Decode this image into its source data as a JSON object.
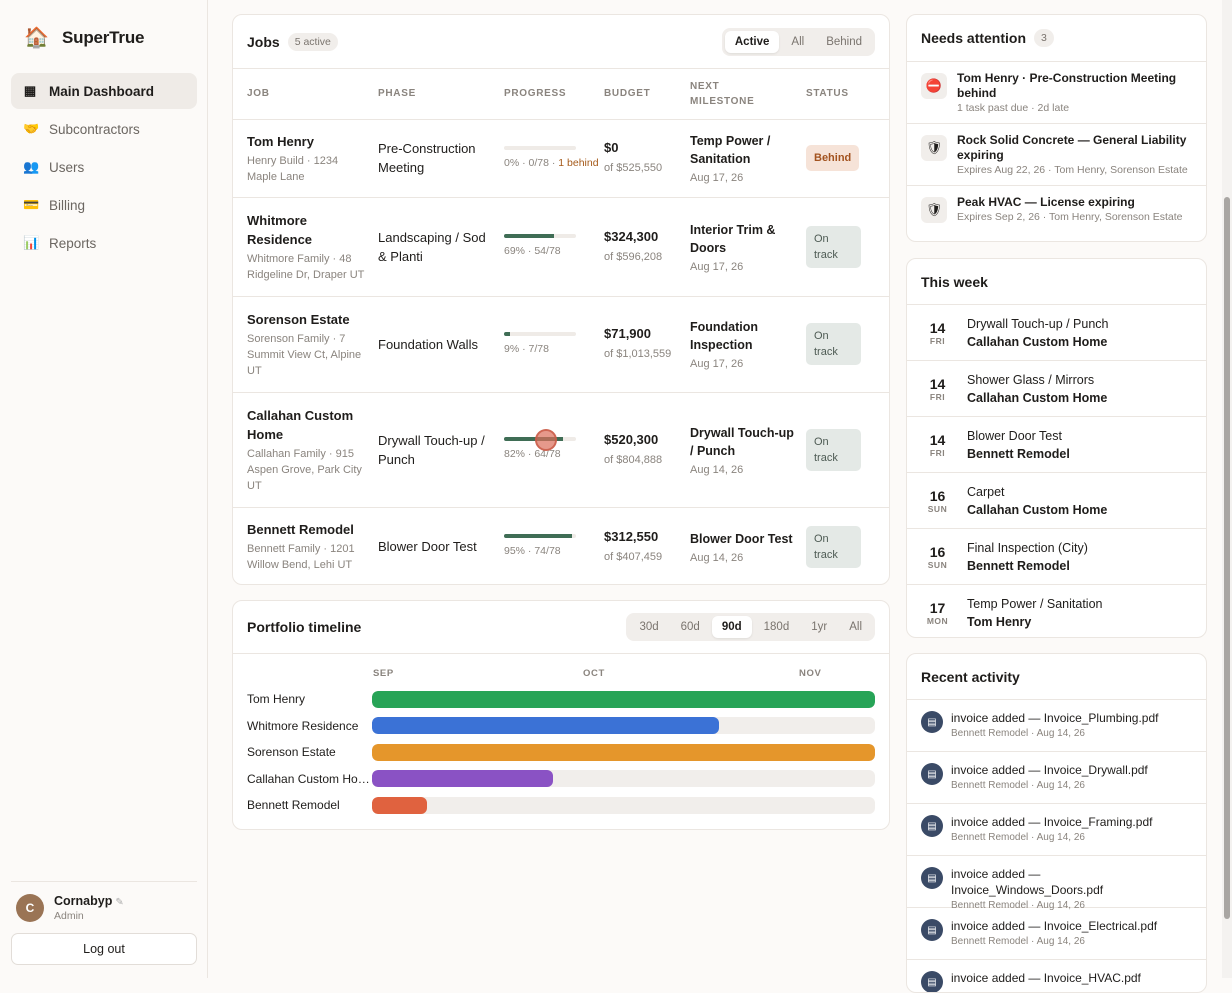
{
  "app": {
    "name": "SuperTrue"
  },
  "nav": [
    {
      "label": "Main Dashboard",
      "icon": "grid-icon",
      "active": true
    },
    {
      "label": "Subcontractors",
      "icon": "handshake-icon",
      "active": false
    },
    {
      "label": "Users",
      "icon": "users-icon",
      "active": false
    },
    {
      "label": "Billing",
      "icon": "credit-card-icon",
      "active": false
    },
    {
      "label": "Reports",
      "icon": "bar-chart-icon",
      "active": false
    }
  ],
  "user": {
    "initial": "C",
    "name": "Cornabyp",
    "role": "Admin",
    "logout": "Log out"
  },
  "jobs": {
    "title": "Jobs",
    "count": "5 active",
    "filters": [
      "Active",
      "All",
      "Behind"
    ],
    "selected_filter": "Active",
    "columns": [
      "Job",
      "Phase",
      "Progress",
      "Budget",
      "Next milestone",
      "Status"
    ],
    "rows": [
      {
        "name": "Tom Henry",
        "sub": "Henry Build · 1234 Maple Lane",
        "phase": "Pre-Construction Meeting",
        "progress": 0,
        "progress_text": "0% · 0/78 · ",
        "late_text": "1 behind",
        "budget": "$0",
        "budget_sub": "of $525,550",
        "milestone": "Temp Power / Sanitation",
        "milestone_date": "Aug 17, 26",
        "status": "Behind"
      },
      {
        "name": "Whitmore Residence",
        "sub": "Whitmore Family · 48 Ridgeline Dr, Draper UT",
        "phase": "Landscaping / Sod & Planti",
        "progress": 69,
        "progress_text": "69% · 54/78",
        "late_text": "",
        "budget": "$324,300",
        "budget_sub": "of $596,208",
        "milestone": "Interior Trim & Doors",
        "milestone_date": "Aug 17, 26",
        "status": "On track"
      },
      {
        "name": "Sorenson Estate",
        "sub": "Sorenson Family · 7 Summit View Ct, Alpine UT",
        "phase": "Foundation Walls",
        "progress": 9,
        "progress_text": "9% · 7/78",
        "late_text": "",
        "budget": "$71,900",
        "budget_sub": "of $1,013,559",
        "milestone": "Foundation Inspection",
        "milestone_date": "Aug 17, 26",
        "status": "On track"
      },
      {
        "name": "Callahan Custom Home",
        "sub": "Callahan Family · 915 Aspen Grove, Park City UT",
        "phase": "Drywall Touch-up / Punch",
        "progress": 82,
        "progress_text": "82% · 64/78",
        "late_text": "",
        "budget": "$520,300",
        "budget_sub": "of $804,888",
        "milestone": "Drywall Touch-up / Punch",
        "milestone_date": "Aug 14, 26",
        "status": "On track"
      },
      {
        "name": "Bennett Remodel",
        "sub": "Bennett Family · 1201 Willow Bend, Lehi UT",
        "phase": "Blower Door Test",
        "progress": 95,
        "progress_text": "95% · 74/78",
        "late_text": "",
        "budget": "$312,550",
        "budget_sub": "of $407,459",
        "milestone": "Blower Door Test",
        "milestone_date": "Aug 14, 26",
        "status": "On track"
      }
    ]
  },
  "timeline": {
    "title": "Portfolio timeline",
    "ranges": [
      "30d",
      "60d",
      "90d",
      "180d",
      "1yr",
      "All"
    ],
    "selected_range": "90d",
    "months": [
      "SEP",
      "OCT",
      "NOV"
    ],
    "rows": [
      {
        "label": "Tom Henry",
        "fill": 1.0,
        "color": "#27a457"
      },
      {
        "label": "Whitmore Residence",
        "fill": 0.69,
        "color": "#3b72d6"
      },
      {
        "label": "Sorenson Estate",
        "fill": 1.0,
        "color": "#e5962b"
      },
      {
        "label": "Callahan Custom Home",
        "fill": 0.36,
        "color": "#8a52c4"
      },
      {
        "label": "Bennett Remodel",
        "fill": 0.11,
        "color": "#e0623f"
      }
    ]
  },
  "attention": {
    "title": "Needs attention",
    "count": "3",
    "items": [
      {
        "icon": "no-entry-icon",
        "glyph": "⛔",
        "title": "Tom Henry · Pre-Construction Meeting behind",
        "sub": "1 task past due · 2d late"
      },
      {
        "icon": "shield-icon",
        "glyph": "🛡",
        "title": "Rock Solid Concrete — General Liability expiring",
        "sub": "Expires Aug 22, 26 · Tom Henry, Sorenson Estate"
      },
      {
        "icon": "shield-icon",
        "glyph": "🛡",
        "title": "Peak HVAC — License expiring",
        "sub": "Expires Sep 2, 26 · Tom Henry, Sorenson Estate"
      }
    ]
  },
  "week": {
    "title": "This week",
    "items": [
      {
        "day": "14",
        "dow": "FRI",
        "task": "Drywall Touch-up / Punch",
        "job": "Callahan Custom Home"
      },
      {
        "day": "14",
        "dow": "FRI",
        "task": "Shower Glass / Mirrors",
        "job": "Callahan Custom Home"
      },
      {
        "day": "14",
        "dow": "FRI",
        "task": "Blower Door Test",
        "job": "Bennett Remodel"
      },
      {
        "day": "16",
        "dow": "SUN",
        "task": "Carpet",
        "job": "Callahan Custom Home"
      },
      {
        "day": "16",
        "dow": "SUN",
        "task": "Final Inspection (City)",
        "job": "Bennett Remodel"
      },
      {
        "day": "17",
        "dow": "MON",
        "task": "Temp Power / Sanitation",
        "job": "Tom Henry"
      }
    ]
  },
  "activity": {
    "title": "Recent activity",
    "items": [
      {
        "text": "invoice added — Invoice_Plumbing.pdf",
        "sub": "Bennett Remodel · Aug 14, 26"
      },
      {
        "text": "invoice added — Invoice_Drywall.pdf",
        "sub": "Bennett Remodel · Aug 14, 26"
      },
      {
        "text": "invoice added — Invoice_Framing.pdf",
        "sub": "Bennett Remodel · Aug 14, 26"
      },
      {
        "text": "invoice added — Invoice_Windows_Doors.pdf",
        "sub": "Bennett Remodel · Aug 14, 26"
      },
      {
        "text": "invoice added — Invoice_Electrical.pdf",
        "sub": "Bennett Remodel · Aug 14, 26"
      },
      {
        "text": "invoice added — Invoice_HVAC.pdf",
        "sub": ""
      }
    ]
  }
}
